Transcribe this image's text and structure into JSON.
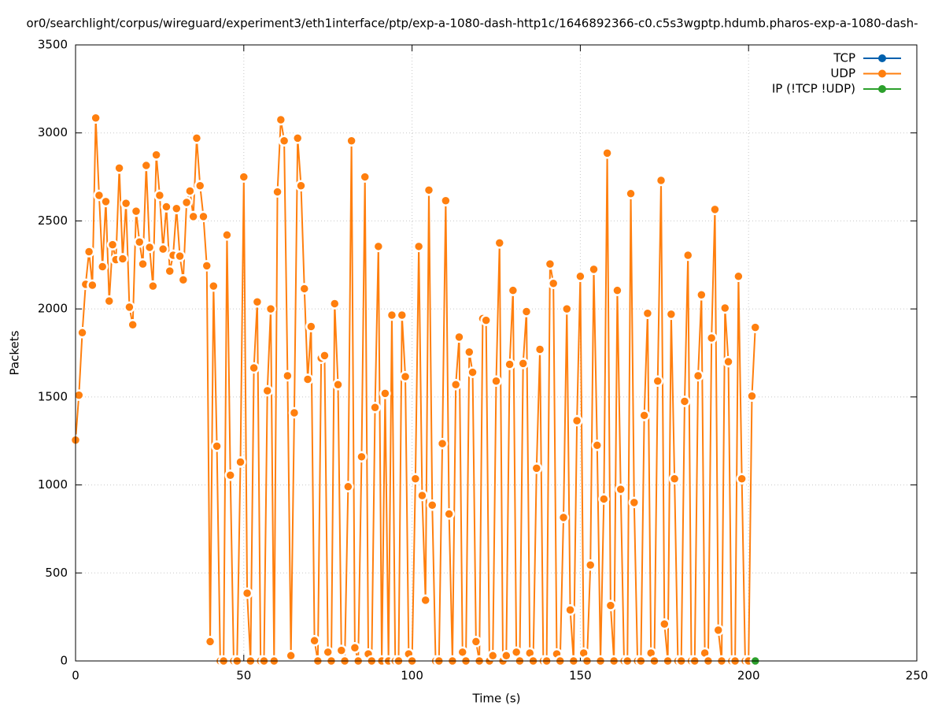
{
  "chart_data": {
    "type": "line",
    "title": "or0/searchlight/corpus/wireguard/experiment3/eth1interface/ptp/exp-a-1080-dash-http1c/1646892366-c0.c5s3wgptp.hdumb.pharos-exp-a-1080-dash-",
    "x_label": "Time (s)",
    "y_label": "Packets",
    "xlim": [
      0,
      250
    ],
    "xticks": [
      0,
      50,
      100,
      150,
      200,
      250
    ],
    "ylim": [
      0,
      3500
    ],
    "yticks": [
      0,
      500,
      1000,
      1500,
      2000,
      2500,
      3000,
      3500
    ],
    "grid": true,
    "legend": "top-right",
    "x": [
      0,
      1,
      2,
      3,
      4,
      5,
      6,
      7,
      8,
      9,
      10,
      11,
      12,
      13,
      14,
      15,
      16,
      17,
      18,
      19,
      20,
      21,
      22,
      23,
      24,
      25,
      26,
      27,
      28,
      29,
      30,
      31,
      32,
      33,
      34,
      35,
      36,
      37,
      38,
      39,
      40,
      41,
      42,
      43,
      44,
      45,
      46,
      47,
      48,
      49,
      50,
      51,
      52,
      53,
      54,
      55,
      56,
      57,
      58,
      59,
      60,
      61,
      62,
      63,
      64,
      65,
      66,
      67,
      68,
      69,
      70,
      71,
      72,
      73,
      74,
      75,
      76,
      77,
      78,
      79,
      80,
      81,
      82,
      83,
      84,
      85,
      86,
      87,
      88,
      89,
      90,
      91,
      92,
      93,
      94,
      95,
      96,
      97,
      98,
      99,
      100,
      101,
      102,
      103,
      104,
      105,
      106,
      107,
      108,
      109,
      110,
      111,
      112,
      113,
      114,
      115,
      116,
      117,
      118,
      119,
      120,
      121,
      122,
      123,
      124,
      125,
      126,
      127,
      128,
      129,
      130,
      131,
      132,
      133,
      134,
      135,
      136,
      137,
      138,
      139,
      140,
      141,
      142,
      143,
      144,
      145,
      146,
      147,
      148,
      149,
      150,
      151,
      152,
      153,
      154,
      155,
      156,
      157,
      158,
      159,
      160,
      161,
      162,
      163,
      164,
      165,
      166,
      167,
      168,
      169,
      170,
      171,
      172,
      173,
      174,
      175,
      176,
      177,
      178,
      179,
      180,
      181,
      182,
      183,
      184,
      185,
      186,
      187,
      188,
      189,
      190,
      191,
      192,
      193,
      194,
      195,
      196,
      197,
      198,
      199,
      200,
      201,
      202
    ],
    "series": [
      {
        "name": "TCP",
        "color": "#0060ad",
        "values": [
          null,
          null,
          null,
          null,
          null,
          null,
          null,
          null,
          null,
          null,
          null,
          null,
          null,
          null,
          null,
          null,
          null,
          null,
          null,
          null,
          null,
          null,
          null,
          null,
          null,
          null,
          null,
          null,
          null,
          null,
          null,
          null,
          null,
          null,
          null,
          null,
          null,
          null,
          null,
          null,
          null,
          null,
          null,
          null,
          null,
          null,
          null,
          null,
          null,
          null,
          null,
          null,
          null,
          null,
          null,
          null,
          null,
          null,
          null,
          null,
          null,
          null,
          null,
          null,
          null,
          null,
          null,
          null,
          null,
          null,
          null,
          null,
          null,
          null,
          null,
          null,
          null,
          null,
          null,
          null,
          null,
          null,
          null,
          null,
          null,
          null,
          null,
          null,
          null,
          null,
          null,
          null,
          null,
          null,
          null,
          null,
          null,
          null,
          null,
          null,
          null,
          null,
          null,
          null,
          null,
          null,
          null,
          null,
          null,
          null,
          null,
          null,
          null,
          null,
          null,
          null,
          null,
          null,
          null,
          null,
          null,
          null,
          null,
          null,
          null,
          null,
          null,
          null,
          null,
          null,
          null,
          null,
          null,
          null,
          null,
          null,
          null,
          null,
          null,
          null,
          null,
          null,
          null,
          null,
          null,
          null,
          null,
          null,
          null,
          null,
          null,
          null,
          null,
          null,
          null,
          null,
          null,
          null,
          null,
          null,
          null,
          null,
          null,
          null,
          null,
          null,
          null,
          null,
          null,
          null,
          null,
          null,
          null,
          null,
          null,
          null,
          null,
          null,
          null,
          null,
          null,
          null,
          null,
          null,
          null,
          null,
          null,
          null,
          null,
          null,
          null,
          null,
          null,
          null,
          null,
          null,
          null,
          null,
          null,
          null,
          null,
          null,
          null
        ]
      },
      {
        "name": "UDP",
        "color": "#ff7f0e",
        "values": [
          1255,
          1510,
          1865,
          2140,
          2325,
          2135,
          3085,
          2645,
          2240,
          2610,
          2045,
          2365,
          2280,
          2800,
          2285,
          2600,
          2010,
          1910,
          2555,
          2380,
          2255,
          2815,
          2350,
          2130,
          2875,
          2645,
          2340,
          2580,
          2215,
          2305,
          2570,
          2300,
          2165,
          2605,
          2670,
          2525,
          2970,
          2700,
          2525,
          2245,
          110,
          2130,
          1220,
          0,
          0,
          2420,
          1055,
          0,
          0,
          1130,
          2750,
          385,
          0,
          1665,
          2040,
          0,
          0,
          1535,
          2000,
          0,
          2665,
          3075,
          2955,
          1620,
          30,
          1410,
          2970,
          2700,
          2115,
          1600,
          1900,
          115,
          0,
          1720,
          1735,
          50,
          0,
          2030,
          1570,
          60,
          0,
          990,
          2955,
          75,
          0,
          1160,
          2750,
          40,
          0,
          1440,
          2355,
          0,
          1520,
          0,
          1965,
          0,
          0,
          1965,
          1615,
          40,
          0,
          1035,
          2355,
          940,
          345,
          2675,
          885,
          0,
          0,
          1235,
          2615,
          835,
          0,
          1570,
          1840,
          50,
          0,
          1755,
          1640,
          110,
          0,
          1945,
          1935,
          0,
          30,
          1590,
          2375,
          0,
          30,
          1685,
          2105,
          50,
          0,
          1690,
          1985,
          45,
          0,
          1095,
          1770,
          0,
          0,
          2255,
          2145,
          40,
          0,
          815,
          2000,
          290,
          0,
          1365,
          2185,
          45,
          0,
          545,
          2225,
          1225,
          0,
          920,
          2885,
          315,
          0,
          2105,
          975,
          0,
          0,
          2655,
          900,
          0,
          0,
          1395,
          1975,
          45,
          0,
          1590,
          2730,
          210,
          0,
          1970,
          1035,
          0,
          0,
          1475,
          2305,
          0,
          0,
          1620,
          2080,
          45,
          0,
          1835,
          2565,
          175,
          0,
          2005,
          1700,
          0,
          0,
          2185,
          1035,
          0,
          0,
          1505,
          1895
        ]
      },
      {
        "name": "IP (!TCP  !UDP)",
        "color": "#2ca02c",
        "values": [
          null,
          null,
          null,
          null,
          null,
          null,
          null,
          null,
          null,
          null,
          null,
          null,
          null,
          null,
          null,
          null,
          null,
          null,
          null,
          null,
          null,
          null,
          null,
          null,
          null,
          null,
          null,
          null,
          null,
          null,
          null,
          null,
          null,
          null,
          null,
          null,
          null,
          null,
          null,
          null,
          null,
          null,
          null,
          null,
          null,
          null,
          null,
          null,
          null,
          null,
          null,
          null,
          null,
          null,
          null,
          null,
          null,
          null,
          null,
          null,
          null,
          null,
          null,
          null,
          null,
          null,
          null,
          null,
          null,
          null,
          null,
          null,
          null,
          null,
          null,
          null,
          null,
          null,
          null,
          null,
          null,
          null,
          null,
          null,
          null,
          null,
          null,
          null,
          null,
          null,
          null,
          null,
          null,
          null,
          null,
          null,
          null,
          null,
          null,
          null,
          null,
          null,
          null,
          null,
          null,
          null,
          null,
          null,
          null,
          null,
          null,
          null,
          null,
          null,
          null,
          null,
          null,
          null,
          null,
          null,
          null,
          null,
          null,
          null,
          null,
          null,
          null,
          null,
          null,
          null,
          null,
          null,
          null,
          null,
          null,
          null,
          null,
          null,
          null,
          null,
          null,
          null,
          null,
          null,
          null,
          null,
          null,
          null,
          null,
          null,
          null,
          null,
          null,
          null,
          null,
          null,
          null,
          null,
          null,
          null,
          null,
          null,
          null,
          null,
          null,
          null,
          null,
          null,
          null,
          null,
          null,
          null,
          null,
          null,
          null,
          null,
          null,
          null,
          null,
          null,
          null,
          null,
          null,
          null,
          null,
          null,
          null,
          null,
          null,
          null,
          null,
          null,
          null,
          null,
          null,
          null,
          null,
          null,
          null,
          null,
          null,
          null,
          0
        ]
      }
    ]
  }
}
